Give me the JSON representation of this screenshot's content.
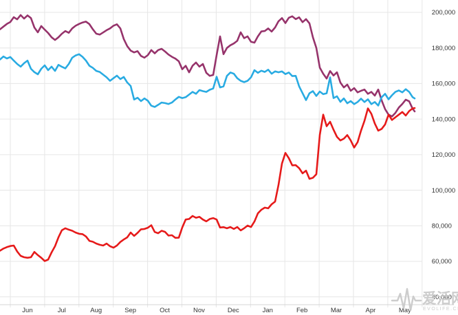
{
  "watermark": {
    "cn": "爱活网",
    "en": "EVOLIFE.CN"
  },
  "chart_data": {
    "type": "line",
    "title": "",
    "xlabel": "",
    "ylabel": "",
    "legend": "none",
    "grid": true,
    "x_axis": {
      "tick_labels": [
        "Jun",
        "Jul",
        "Aug",
        "Sep",
        "Oct",
        "Nov",
        "Dec",
        "Jan",
        "Feb",
        "Mar",
        "Apr",
        "May"
      ],
      "unit": "month"
    },
    "y_axis": {
      "tick_labels": [
        "200,000",
        "180,000",
        "160,000",
        "140,000",
        "120,000",
        "100,000",
        "80,000",
        "60,000",
        "40,000"
      ],
      "tick_values": [
        200000,
        180000,
        160000,
        140000,
        120000,
        100000,
        80000,
        60000,
        40000
      ],
      "min": 40000,
      "max": 200000,
      "step": 20000,
      "side": "right"
    },
    "x_sampling": {
      "x0": 0,
      "dx": 5,
      "x_last": 603,
      "note": "values sampled weekly Jun through late May"
    },
    "series": [
      {
        "name": "purple",
        "color": "#96336B",
        "values": [
          190500,
          192000,
          193500,
          194600,
          197300,
          196100,
          198500,
          196500,
          198300,
          196800,
          191500,
          188800,
          192300,
          190300,
          188400,
          186000,
          184500,
          186000,
          188000,
          189500,
          188500,
          191000,
          192500,
          193500,
          194300,
          194800,
          193400,
          190500,
          188000,
          187500,
          188700,
          190000,
          191000,
          192500,
          193300,
          191000,
          185000,
          181000,
          178500,
          177500,
          178200,
          175500,
          174500,
          176000,
          178800,
          177000,
          178800,
          179500,
          178000,
          176300,
          175000,
          174000,
          172500,
          168000,
          170000,
          166300,
          170000,
          171800,
          169500,
          171000,
          166000,
          164300,
          164800,
          176000,
          186500,
          176500,
          180000,
          181500,
          182500,
          184000,
          188800,
          185500,
          186500,
          183500,
          183000,
          186500,
          189300,
          189500,
          191000,
          189200,
          191500,
          195000,
          196800,
          194000,
          197000,
          197800,
          196200,
          197200,
          194500,
          196200,
          193800,
          186000,
          180000,
          169000,
          165500,
          162800,
          167000,
          164500,
          166300,
          160500,
          157800,
          159400,
          155900,
          157400,
          155000,
          155900,
          156600,
          154200,
          155300,
          153200,
          156600,
          150500,
          145600,
          142500,
          141500,
          143500,
          146500,
          148500,
          150900,
          150000,
          145800,
          144300
        ]
      },
      {
        "name": "blue",
        "color": "#29ABE2",
        "values": [
          173500,
          175200,
          174100,
          174900,
          172900,
          171000,
          169500,
          171400,
          172900,
          168300,
          166400,
          165200,
          168300,
          170200,
          167500,
          169500,
          167100,
          170500,
          169400,
          168500,
          171000,
          174500,
          175800,
          176500,
          175000,
          172900,
          170000,
          168800,
          167100,
          166500,
          165000,
          163500,
          161500,
          163000,
          164400,
          162500,
          163700,
          160600,
          158600,
          151000,
          152000,
          150100,
          151600,
          150300,
          147500,
          146800,
          148000,
          149300,
          149000,
          148500,
          149300,
          151000,
          152500,
          151800,
          152300,
          153800,
          155300,
          154200,
          156300,
          155700,
          155300,
          156500,
          157200,
          163800,
          157800,
          158400,
          164300,
          166200,
          165500,
          163000,
          161500,
          160800,
          161500,
          163500,
          167500,
          166000,
          167200,
          166500,
          167800,
          165500,
          166800,
          166300,
          166800,
          165300,
          166200,
          164200,
          164300,
          158400,
          154500,
          150700,
          154500,
          155700,
          153000,
          155500,
          154000,
          154500,
          163500,
          151800,
          152800,
          149700,
          151600,
          148900,
          150100,
          148400,
          149600,
          151500,
          149600,
          151100,
          148400,
          149600,
          147600,
          152300,
          154200,
          151100,
          153400,
          155300,
          156100,
          155000,
          156800,
          155300,
          152300,
          151600
        ]
      },
      {
        "name": "red",
        "color": "#E61A1A",
        "values": [
          66000,
          67200,
          68000,
          68600,
          68900,
          65500,
          63100,
          62300,
          62000,
          62300,
          65300,
          63500,
          62000,
          60200,
          61000,
          65000,
          68500,
          73500,
          77500,
          78600,
          77800,
          77200,
          76200,
          75500,
          75300,
          74000,
          71500,
          71000,
          70000,
          69300,
          68900,
          70000,
          68500,
          67700,
          68900,
          70900,
          72300,
          73500,
          76200,
          74300,
          76000,
          78000,
          78200,
          78900,
          80300,
          76500,
          75800,
          77200,
          76600,
          74500,
          74700,
          73200,
          73300,
          79000,
          83500,
          83800,
          85500,
          84500,
          85000,
          83500,
          82500,
          83800,
          84300,
          83500,
          79000,
          79200,
          78600,
          79300,
          78200,
          79300,
          77400,
          78600,
          80100,
          79300,
          82400,
          87000,
          89000,
          90200,
          89800,
          92100,
          93600,
          103000,
          115000,
          121000,
          118000,
          114000,
          114100,
          112400,
          109500,
          111000,
          106400,
          107000,
          109000,
          131000,
          142500,
          136000,
          138500,
          134000,
          130000,
          128000,
          129000,
          131000,
          128000,
          124000,
          127000,
          133500,
          139000,
          146000,
          143000,
          137500,
          133500,
          134500,
          137000,
          142500,
          139500,
          141000,
          142500,
          144000,
          142000,
          144500,
          146000,
          146200
        ]
      }
    ],
    "colors": {
      "grid": "#E6E6E6",
      "axis": "#D4D4D4",
      "tick_text": "#333333",
      "watermark": "#C8C8C8"
    }
  }
}
